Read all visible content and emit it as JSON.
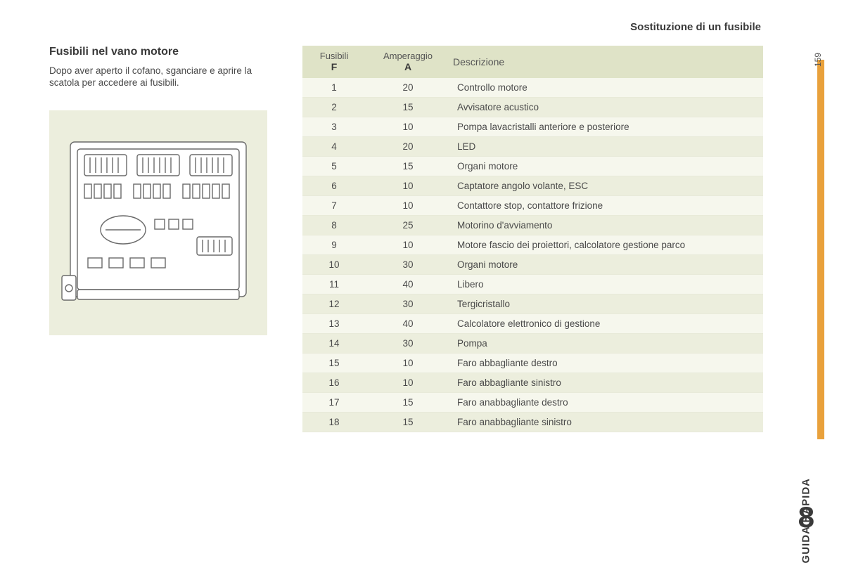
{
  "page": {
    "top_title": "Sostituzione di un fusibile",
    "page_number": "159",
    "side_label": "GUIDA RAPIDA",
    "chapter_number": "8"
  },
  "left": {
    "heading": "Fusibili nel vano motore",
    "intro": "Dopo aver aperto il cofano, sganciare e aprire la scatola per accedere ai fusibili."
  },
  "table": {
    "type": "table",
    "header_bg": "#dfe3c7",
    "row_bg_odd": "#f6f7ed",
    "row_bg_even": "#eceedd",
    "columns": [
      {
        "top": "Fusibili",
        "bot": "F"
      },
      {
        "top": "Amperaggio",
        "bot": "A"
      },
      {
        "label": "Descrizione"
      }
    ],
    "rows": [
      {
        "f": "1",
        "a": "20",
        "d": "Controllo motore"
      },
      {
        "f": "2",
        "a": "15",
        "d": "Avvisatore acustico"
      },
      {
        "f": "3",
        "a": "10",
        "d": "Pompa lavacristalli anteriore e posteriore"
      },
      {
        "f": "4",
        "a": "20",
        "d": "LED"
      },
      {
        "f": "5",
        "a": "15",
        "d": "Organi motore"
      },
      {
        "f": "6",
        "a": "10",
        "d": "Captatore angolo volante, ESC"
      },
      {
        "f": "7",
        "a": "10",
        "d": "Contattore stop, contattore frizione"
      },
      {
        "f": "8",
        "a": "25",
        "d": "Motorino d'avviamento"
      },
      {
        "f": "9",
        "a": "10",
        "d": "Motore fascio dei proiettori, calcolatore gestione parco"
      },
      {
        "f": "10",
        "a": "30",
        "d": "Organi motore"
      },
      {
        "f": "11",
        "a": "40",
        "d": "Libero"
      },
      {
        "f": "12",
        "a": "30",
        "d": "Tergicristallo"
      },
      {
        "f": "13",
        "a": "40",
        "d": "Calcolatore elettronico di gestione"
      },
      {
        "f": "14",
        "a": "30",
        "d": "Pompa"
      },
      {
        "f": "15",
        "a": "10",
        "d": "Faro abbagliante destro"
      },
      {
        "f": "16",
        "a": "10",
        "d": "Faro abbagliante sinistro"
      },
      {
        "f": "17",
        "a": "15",
        "d": "Faro anabbagliante destro"
      },
      {
        "f": "18",
        "a": "15",
        "d": "Faro anabbagliante sinistro"
      }
    ]
  },
  "diagram": {
    "bg": "#eceedd",
    "stroke": "#6a6a6a",
    "fill": "#ffffff"
  }
}
